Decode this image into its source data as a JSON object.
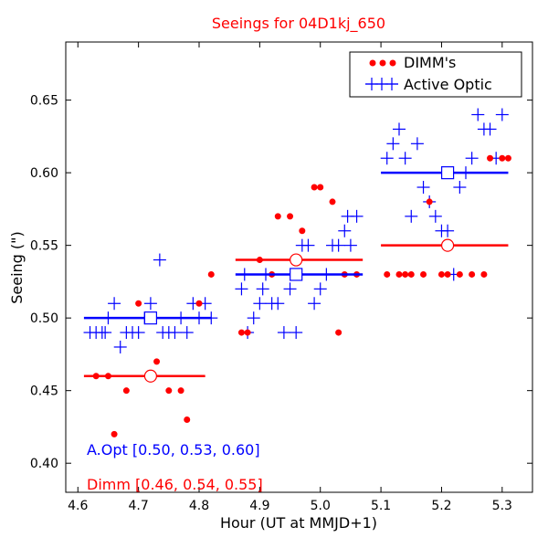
{
  "chart_data": {
    "type": "scatter",
    "title": "Seeings for 04D1kj_650",
    "xlabel": "Hour (UT at MMJD+1)",
    "ylabel": "Seeing (\")",
    "xlim": [
      4.58,
      5.35
    ],
    "ylim": [
      0.38,
      0.69
    ],
    "xticks": [
      4.6,
      4.7,
      4.8,
      4.9,
      5.0,
      5.1,
      5.2,
      5.3
    ],
    "xtick_labels": [
      "4.6",
      "4.7",
      "4.8",
      "4.9",
      "5.0",
      "5.1",
      "5.2",
      "5.3"
    ],
    "yticks": [
      0.4,
      0.45,
      0.5,
      0.55,
      0.6,
      0.65
    ],
    "ytick_labels": [
      "0.40",
      "0.45",
      "0.50",
      "0.55",
      "0.60",
      "0.65"
    ],
    "legend_position": "top-right",
    "colors": {
      "dimm": "#ff0000",
      "active_optic": "#0000ff",
      "title": "#ff0000"
    },
    "series": [
      {
        "name": "DIMM's",
        "marker": "dot",
        "color": "#ff0000",
        "points": [
          [
            4.63,
            0.46
          ],
          [
            4.65,
            0.46
          ],
          [
            4.66,
            0.42
          ],
          [
            4.68,
            0.45
          ],
          [
            4.7,
            0.51
          ],
          [
            4.73,
            0.47
          ],
          [
            4.75,
            0.45
          ],
          [
            4.77,
            0.45
          ],
          [
            4.78,
            0.43
          ],
          [
            4.8,
            0.51
          ],
          [
            4.82,
            0.53
          ],
          [
            4.87,
            0.49
          ],
          [
            4.88,
            0.49
          ],
          [
            4.9,
            0.54
          ],
          [
            4.92,
            0.53
          ],
          [
            4.93,
            0.57
          ],
          [
            4.95,
            0.57
          ],
          [
            4.96,
            0.53
          ],
          [
            4.97,
            0.56
          ],
          [
            4.99,
            0.59
          ],
          [
            5.0,
            0.59
          ],
          [
            5.02,
            0.58
          ],
          [
            5.03,
            0.49
          ],
          [
            5.04,
            0.53
          ],
          [
            5.06,
            0.53
          ],
          [
            5.11,
            0.53
          ],
          [
            5.13,
            0.53
          ],
          [
            5.14,
            0.53
          ],
          [
            5.15,
            0.53
          ],
          [
            5.17,
            0.53
          ],
          [
            5.18,
            0.58
          ],
          [
            5.2,
            0.53
          ],
          [
            5.21,
            0.53
          ],
          [
            5.23,
            0.53
          ],
          [
            5.25,
            0.53
          ],
          [
            5.27,
            0.53
          ],
          [
            5.28,
            0.61
          ],
          [
            5.3,
            0.61
          ],
          [
            5.31,
            0.61
          ]
        ]
      },
      {
        "name": "Active Optic",
        "marker": "plus",
        "color": "#0000ff",
        "points": [
          [
            4.62,
            0.49
          ],
          [
            4.63,
            0.49
          ],
          [
            4.64,
            0.49
          ],
          [
            4.645,
            0.49
          ],
          [
            4.65,
            0.5
          ],
          [
            4.66,
            0.51
          ],
          [
            4.67,
            0.48
          ],
          [
            4.68,
            0.49
          ],
          [
            4.69,
            0.49
          ],
          [
            4.7,
            0.49
          ],
          [
            4.71,
            0.5
          ],
          [
            4.72,
            0.51
          ],
          [
            4.735,
            0.54
          ],
          [
            4.74,
            0.49
          ],
          [
            4.75,
            0.49
          ],
          [
            4.76,
            0.49
          ],
          [
            4.77,
            0.5
          ],
          [
            4.78,
            0.49
          ],
          [
            4.79,
            0.51
          ],
          [
            4.8,
            0.5
          ],
          [
            4.81,
            0.51
          ],
          [
            4.82,
            0.5
          ],
          [
            4.87,
            0.52
          ],
          [
            4.875,
            0.53
          ],
          [
            4.88,
            0.49
          ],
          [
            4.89,
            0.5
          ],
          [
            4.9,
            0.51
          ],
          [
            4.905,
            0.52
          ],
          [
            4.91,
            0.53
          ],
          [
            4.92,
            0.51
          ],
          [
            4.93,
            0.51
          ],
          [
            4.94,
            0.49
          ],
          [
            4.95,
            0.52
          ],
          [
            4.96,
            0.49
          ],
          [
            4.965,
            0.53
          ],
          [
            4.97,
            0.55
          ],
          [
            4.98,
            0.55
          ],
          [
            4.99,
            0.51
          ],
          [
            5.0,
            0.52
          ],
          [
            5.01,
            0.53
          ],
          [
            5.02,
            0.55
          ],
          [
            5.03,
            0.55
          ],
          [
            5.04,
            0.56
          ],
          [
            5.045,
            0.57
          ],
          [
            5.05,
            0.55
          ],
          [
            5.06,
            0.57
          ],
          [
            5.11,
            0.61
          ],
          [
            5.12,
            0.62
          ],
          [
            5.13,
            0.63
          ],
          [
            5.14,
            0.61
          ],
          [
            5.15,
            0.57
          ],
          [
            5.16,
            0.62
          ],
          [
            5.17,
            0.59
          ],
          [
            5.18,
            0.58
          ],
          [
            5.19,
            0.57
          ],
          [
            5.2,
            0.56
          ],
          [
            5.21,
            0.56
          ],
          [
            5.22,
            0.53
          ],
          [
            5.23,
            0.59
          ],
          [
            5.24,
            0.6
          ],
          [
            5.25,
            0.61
          ],
          [
            5.26,
            0.64
          ],
          [
            5.27,
            0.63
          ],
          [
            5.28,
            0.63
          ],
          [
            5.29,
            0.61
          ],
          [
            5.3,
            0.64
          ]
        ]
      }
    ],
    "bin_means": [
      {
        "series": "Active Optic",
        "marker": "square",
        "color": "#0000ff",
        "x": 4.72,
        "x_range": [
          4.61,
          4.82
        ],
        "y": 0.5
      },
      {
        "series": "Active Optic",
        "marker": "square",
        "color": "#0000ff",
        "x": 4.96,
        "x_range": [
          4.86,
          5.07
        ],
        "y": 0.53
      },
      {
        "series": "Active Optic",
        "marker": "square",
        "color": "#0000ff",
        "x": 5.21,
        "x_range": [
          5.1,
          5.31
        ],
        "y": 0.6
      },
      {
        "series": "DIMM's",
        "marker": "circle",
        "color": "#ff0000",
        "x": 4.72,
        "x_range": [
          4.61,
          4.81
        ],
        "y": 0.46
      },
      {
        "series": "DIMM's",
        "marker": "circle",
        "color": "#ff0000",
        "x": 4.96,
        "x_range": [
          4.86,
          5.07
        ],
        "y": 0.54
      },
      {
        "series": "DIMM's",
        "marker": "circle",
        "color": "#ff0000",
        "x": 5.21,
        "x_range": [
          5.1,
          5.31
        ],
        "y": 0.55
      }
    ],
    "annotations": [
      {
        "name": "aopt-summary",
        "text": "A.Opt [0.50, 0.53, 0.60]",
        "color": "#0000ff"
      },
      {
        "name": "dimm-summary",
        "text": "Dimm [0.46, 0.54, 0.55]",
        "color": "#ff0000"
      }
    ]
  }
}
